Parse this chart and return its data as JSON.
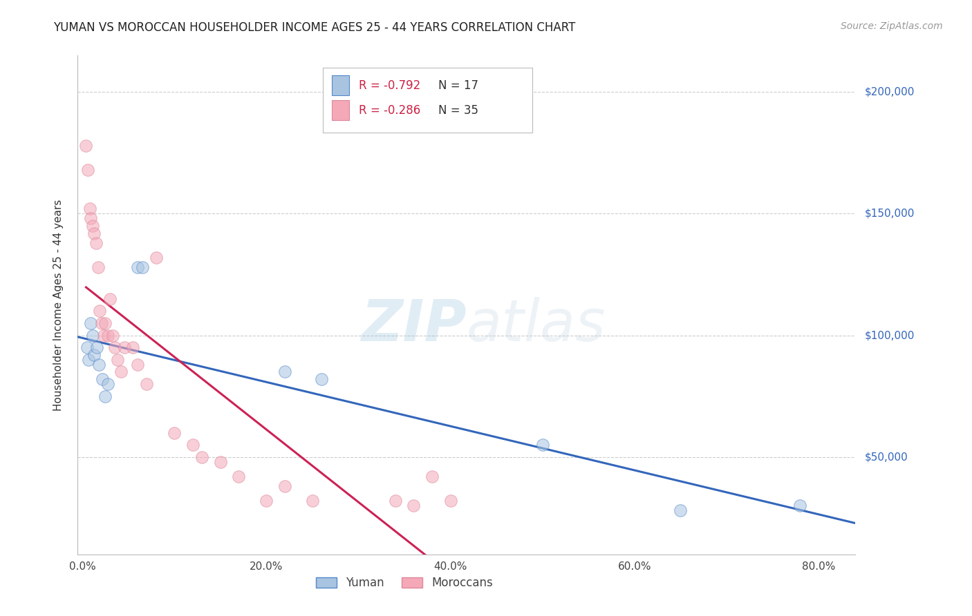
{
  "title": "YUMAN VS MOROCCAN HOUSEHOLDER INCOME AGES 25 - 44 YEARS CORRELATION CHART",
  "source": "Source: ZipAtlas.com",
  "ylabel": "Householder Income Ages 25 - 44 years",
  "xlabel_ticks": [
    "0.0%",
    "20.0%",
    "40.0%",
    "60.0%",
    "80.0%"
  ],
  "xlabel_vals": [
    0.0,
    0.2,
    0.4,
    0.6,
    0.8
  ],
  "ytick_labels": [
    "$50,000",
    "$100,000",
    "$150,000",
    "$200,000"
  ],
  "ytick_vals": [
    50000,
    100000,
    150000,
    200000
  ],
  "ylim": [
    10000,
    215000
  ],
  "xlim": [
    -0.005,
    0.84
  ],
  "legend_r_blue": "R = -0.792",
  "legend_n_blue": "N = 17",
  "legend_r_pink": "R = -0.286",
  "legend_n_pink": "N = 35",
  "legend_label_blue": "Yuman",
  "legend_label_pink": "Moroccans",
  "blue_color": "#a8c4e0",
  "pink_color": "#f4a8b8",
  "blue_edge_color": "#5588cc",
  "pink_edge_color": "#dd8899",
  "blue_line_color": "#3366bb",
  "pink_line_color": "#cc2255",
  "yuman_x": [
    0.005,
    0.007,
    0.009,
    0.011,
    0.013,
    0.016,
    0.018,
    0.022,
    0.025,
    0.028,
    0.06,
    0.065,
    0.22,
    0.26,
    0.5,
    0.65,
    0.78
  ],
  "yuman_y": [
    95000,
    90000,
    105000,
    100000,
    92000,
    95000,
    88000,
    82000,
    75000,
    80000,
    128000,
    128000,
    85000,
    82000,
    55000,
    28000,
    30000
  ],
  "moroccan_x": [
    0.004,
    0.006,
    0.008,
    0.009,
    0.011,
    0.013,
    0.015,
    0.017,
    0.019,
    0.021,
    0.023,
    0.025,
    0.028,
    0.03,
    0.033,
    0.035,
    0.038,
    0.042,
    0.046,
    0.055,
    0.06,
    0.07,
    0.08,
    0.1,
    0.12,
    0.13,
    0.15,
    0.17,
    0.2,
    0.22,
    0.25,
    0.34,
    0.36,
    0.38,
    0.4
  ],
  "moroccan_y": [
    178000,
    168000,
    152000,
    148000,
    145000,
    142000,
    138000,
    128000,
    110000,
    105000,
    100000,
    105000,
    100000,
    115000,
    100000,
    95000,
    90000,
    85000,
    95000,
    95000,
    88000,
    80000,
    132000,
    60000,
    55000,
    50000,
    48000,
    42000,
    32000,
    38000,
    32000,
    32000,
    30000,
    42000,
    32000
  ],
  "watermark_zip": "ZIP",
  "watermark_atlas": "atlas",
  "background_color": "#ffffff",
  "grid_color": "#cccccc",
  "title_fontsize": 12,
  "source_fontsize": 10,
  "axis_label_fontsize": 11,
  "tick_fontsize": 11,
  "legend_fontsize": 12,
  "scatter_size": 160,
  "scatter_alpha": 0.55
}
